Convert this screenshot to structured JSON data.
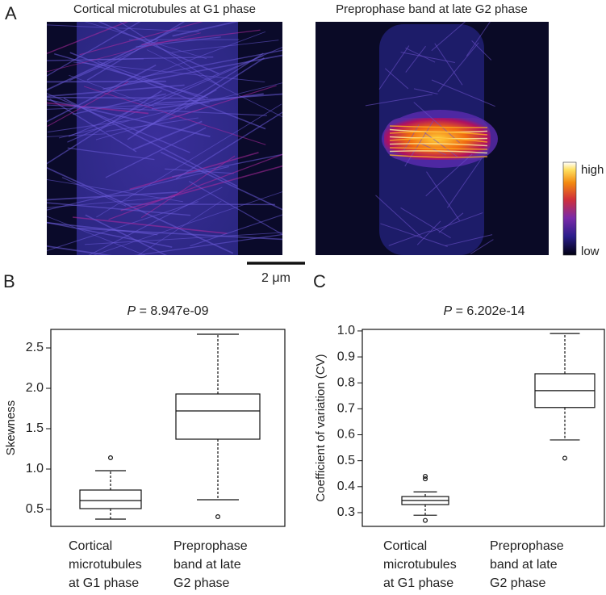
{
  "panel_a": {
    "label": "A",
    "images": [
      {
        "title": "Cortical microtubules at G1 phase"
      },
      {
        "title": "Preprophase band at late G2 phase"
      }
    ],
    "scale_bar": "2 μm",
    "colorbar": {
      "high": "high",
      "low": "low"
    }
  },
  "chart_data": [
    {
      "type": "box",
      "label": "B",
      "title_symbol": "P",
      "title": "= 8.947e-09",
      "y_label": "Skewness",
      "categories": [
        "Cortical\nmicrotubules\nat G1 phase",
        "Preprophase\nband at late\nG2 phase"
      ],
      "boxes": [
        {
          "whisker_low": 0.38,
          "q1": 0.51,
          "median": 0.61,
          "q3": 0.74,
          "whisker_high": 0.98,
          "outliers": [
            1.14
          ]
        },
        {
          "whisker_low": 0.62,
          "q1": 1.37,
          "median": 1.72,
          "q3": 1.93,
          "whisker_high": 2.67,
          "outliers": [
            0.41
          ]
        }
      ],
      "ylim": [
        0.29,
        2.73
      ],
      "yticks": [
        0.5,
        {
          "value": 1.0,
          "label": "1.0"
        },
        1.5,
        {
          "value": 2.0,
          "label": "2.0"
        },
        2.5
      ]
    },
    {
      "type": "box",
      "label": "C",
      "title_symbol": "P",
      "title": "= 6.202e-14",
      "y_label": "Coefficient of variation (CV)",
      "categories": [
        "Cortical\nmicrotubules\nat G1 phase",
        "Preprophase\nband at late\nG2 phase"
      ],
      "boxes": [
        {
          "whisker_low": 0.29,
          "q1": 0.331,
          "median": 0.347,
          "q3": 0.362,
          "whisker_high": 0.38,
          "outliers": [
            0.27,
            0.43,
            0.44
          ]
        },
        {
          "whisker_low": 0.58,
          "q1": 0.705,
          "median": 0.77,
          "q3": 0.835,
          "whisker_high": 0.99,
          "outliers": [
            0.51
          ]
        }
      ],
      "ylim": [
        0.247,
        1.006
      ],
      "yticks": [
        0.3,
        0.4,
        0.5,
        0.6,
        0.7,
        0.8,
        0.9,
        {
          "value": 1.0,
          "label": "1.0"
        }
      ]
    }
  ]
}
